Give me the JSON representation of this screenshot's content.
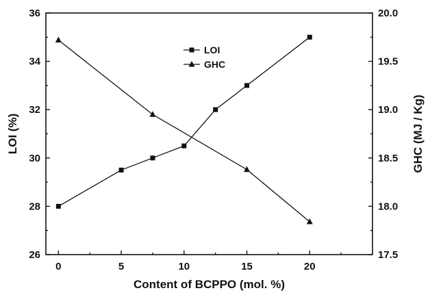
{
  "chart_data": {
    "type": "line",
    "x_ticks": [
      0,
      5,
      10,
      15,
      20
    ],
    "y_ticks": [
      26,
      28,
      30,
      32,
      34,
      36
    ],
    "y2_ticks": [
      17.5,
      18.0,
      18.5,
      19.0,
      19.5,
      20.0
    ],
    "x_tick_labels": [
      "0",
      "5",
      "10",
      "15",
      "20"
    ],
    "y_tick_labels": [
      "26",
      "28",
      "30",
      "32",
      "34",
      "36"
    ],
    "y2_tick_labels": [
      "17.5",
      "18.0",
      "18.5",
      "19.0",
      "19.5",
      "20.0"
    ],
    "xlabel": "Content of BCPPO (mol. %)",
    "ylabel": "LOI (%)",
    "y2label": "GHC (MJ / Kg)",
    "xlim": [
      -1,
      25
    ],
    "ylim": [
      26,
      36
    ],
    "y2lim": [
      17.5,
      20.0
    ],
    "grid": false,
    "legend_position": "top-center",
    "series": [
      {
        "name": "LOI",
        "axis": "left",
        "marker": "square",
        "x": [
          0,
          5,
          7.5,
          10,
          12.5,
          15,
          20
        ],
        "values": [
          28.0,
          29.5,
          30.0,
          30.5,
          32.0,
          33.0,
          35.0
        ]
      },
      {
        "name": "GHC",
        "axis": "right",
        "marker": "triangle",
        "x": [
          0,
          7.5,
          15,
          20
        ],
        "values": [
          19.72,
          18.95,
          18.38,
          17.84
        ]
      }
    ]
  }
}
